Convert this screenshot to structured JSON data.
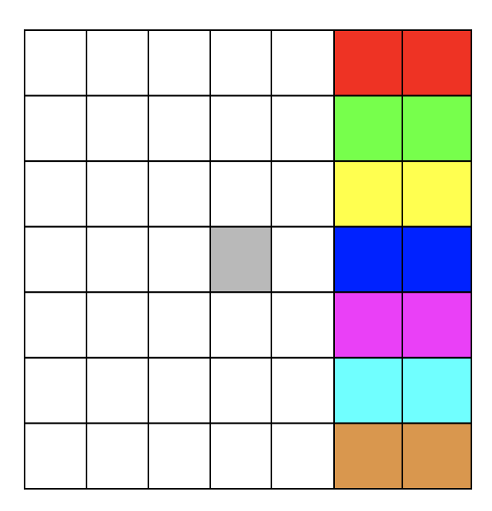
{
  "grid": {
    "rows": [
      [
        "#ffffff",
        "#ffffff",
        "#ffffff",
        "#ffffff",
        "#ffffff",
        "#ee3324",
        "#ee3324"
      ],
      [
        "#ffffff",
        "#ffffff",
        "#ffffff",
        "#ffffff",
        "#ffffff",
        "#77ff4c",
        "#77ff4c"
      ],
      [
        "#ffffff",
        "#ffffff",
        "#ffffff",
        "#ffffff",
        "#ffffff",
        "#ffff50",
        "#ffff50"
      ],
      [
        "#ffffff",
        "#ffffff",
        "#ffffff",
        "#b9b9b9",
        "#ffffff",
        "#0022ff",
        "#0022ff"
      ],
      [
        "#ffffff",
        "#ffffff",
        "#ffffff",
        "#ffffff",
        "#ffffff",
        "#ea40f7",
        "#ea40f7"
      ],
      [
        "#ffffff",
        "#ffffff",
        "#ffffff",
        "#ffffff",
        "#ffffff",
        "#70ffff",
        "#70ffff"
      ],
      [
        "#ffffff",
        "#ffffff",
        "#ffffff",
        "#ffffff",
        "#ffffff",
        "#d9974e",
        "#d9974e"
      ]
    ]
  }
}
